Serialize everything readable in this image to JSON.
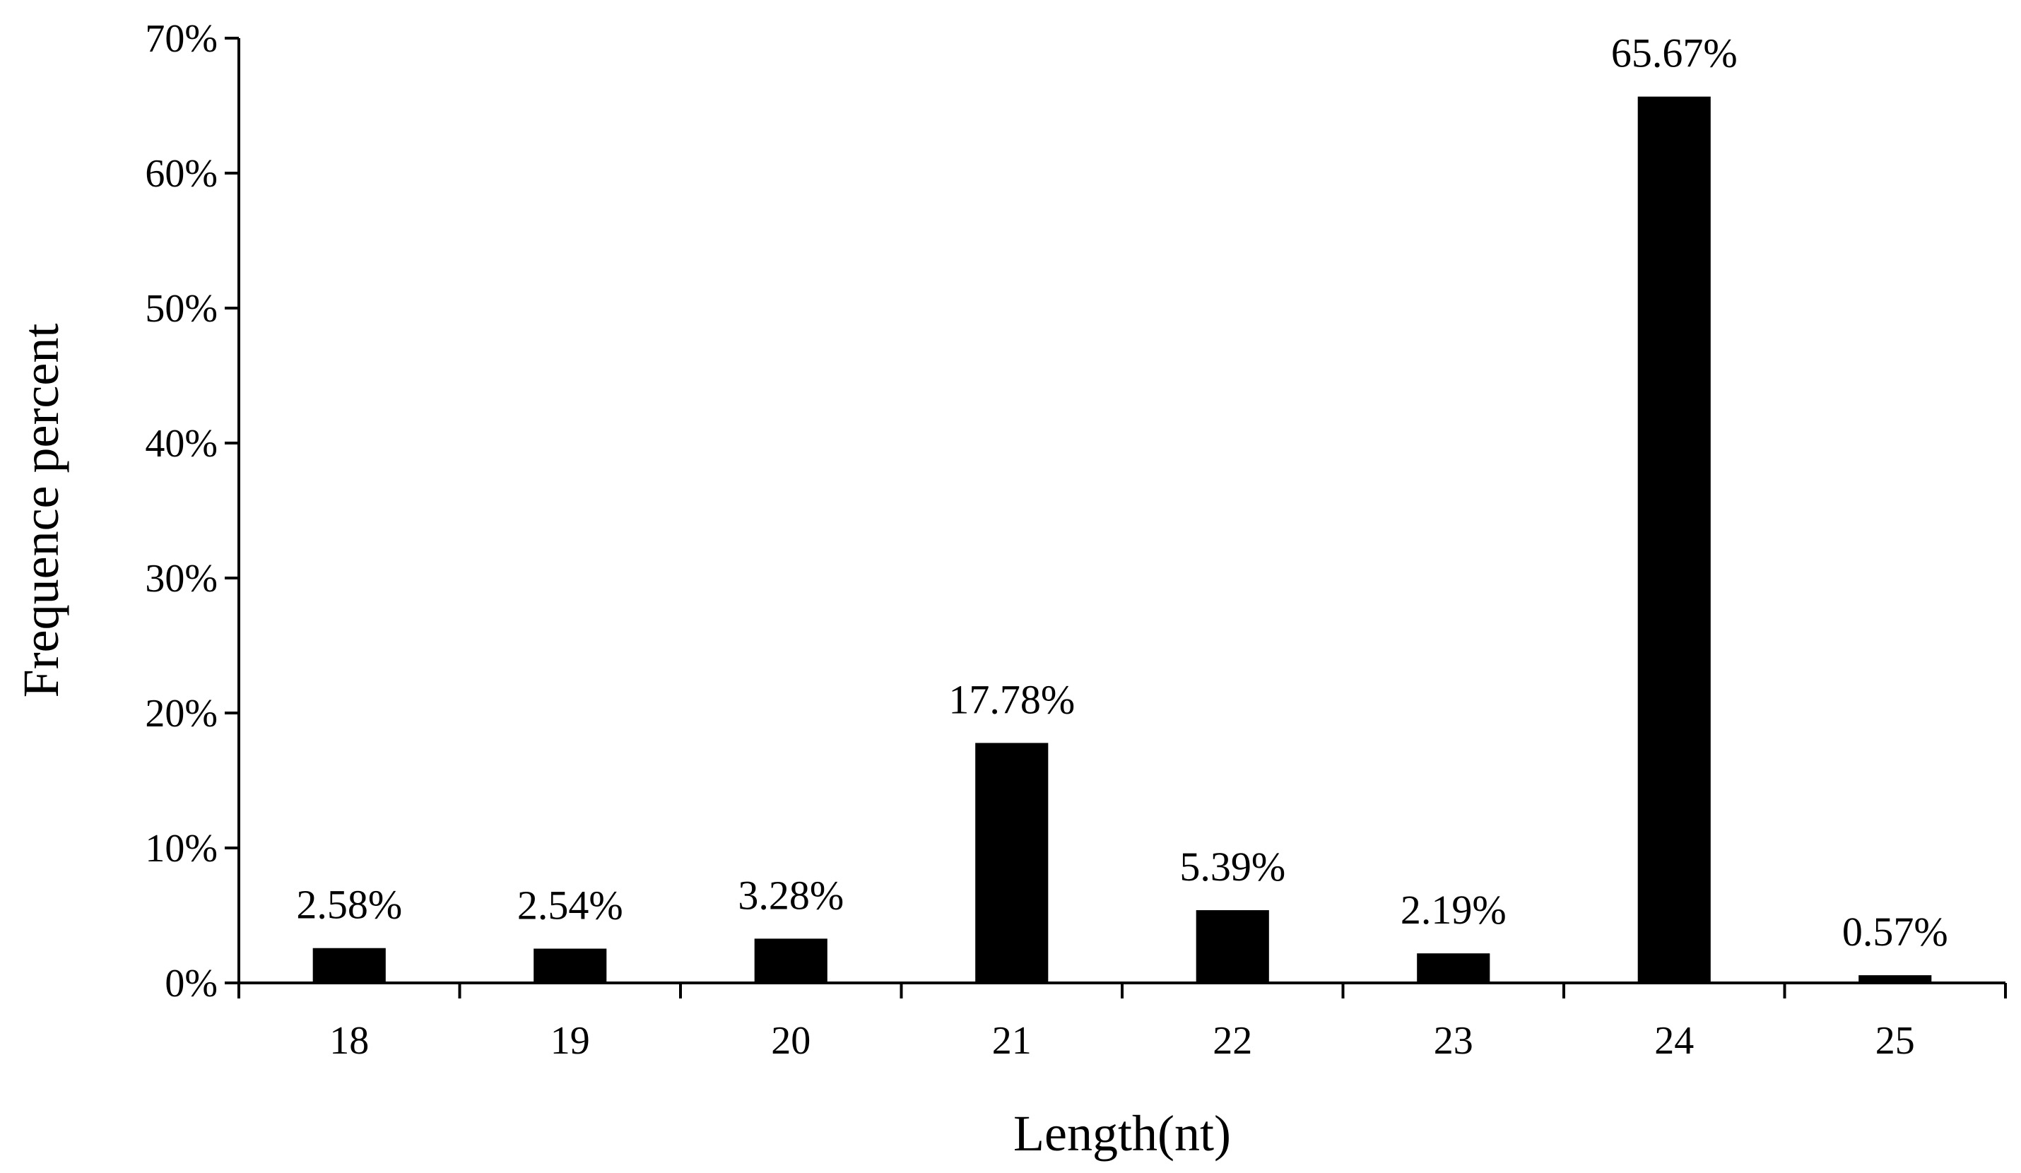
{
  "chart_data": {
    "type": "bar",
    "title": "",
    "xlabel": "Length(nt)",
    "ylabel": "Frequence percent",
    "categories": [
      "18",
      "19",
      "20",
      "21",
      "22",
      "23",
      "24",
      "25"
    ],
    "values": [
      2.58,
      2.54,
      3.28,
      17.78,
      5.39,
      2.19,
      65.67,
      0.57
    ],
    "data_labels": [
      "2.58%",
      "2.54%",
      "3.28%",
      "17.78%",
      "5.39%",
      "2.19%",
      "65.67%",
      "0.57%"
    ],
    "ylim": [
      0,
      70
    ],
    "yticks": [
      0,
      10,
      20,
      30,
      40,
      50,
      60,
      70
    ],
    "ytick_labels": [
      "0%",
      "10%",
      "20%",
      "30%",
      "40%",
      "50%",
      "60%",
      "70%"
    ],
    "grid": false,
    "legend": "none",
    "bar_color": "#000000",
    "axis_color": "#000000"
  }
}
